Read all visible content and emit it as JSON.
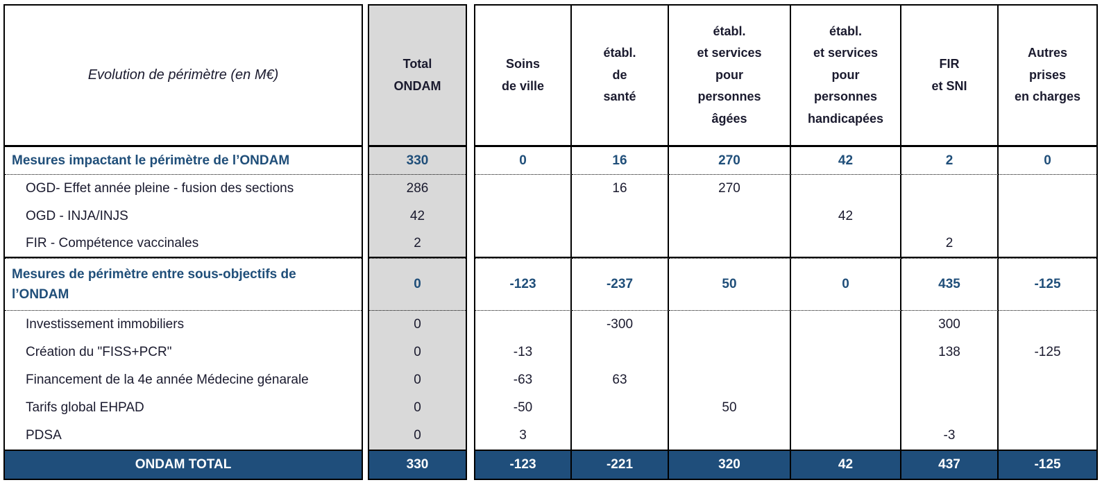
{
  "chart_data": {
    "type": "table",
    "title": "Evolution de périmètre (en M€)",
    "unit": "M€",
    "total_column_header": "Total\nONDAM",
    "columns": [
      "Soins\nde ville",
      "établ.\nde\nsanté",
      "établ.\net services\npour\npersonnes\nâgées",
      "établ.\net services\npour\npersonnes\nhandicapées",
      "FIR\net SNI",
      "Autres\nprises\nen charges"
    ],
    "rows": [
      {
        "label": "Mesures impactant le périmètre de l’ONDAM",
        "style": "section",
        "values": [
          "330",
          "0",
          "16",
          "270",
          "42",
          "2",
          "0"
        ]
      },
      {
        "label": "OGD- Effet année pleine - fusion des sections",
        "style": "sub",
        "values": [
          "286",
          "",
          "16",
          "270",
          "",
          "",
          ""
        ]
      },
      {
        "label": "OGD - INJA/INJS",
        "style": "sub",
        "values": [
          "42",
          "",
          "",
          "",
          "42",
          "",
          ""
        ]
      },
      {
        "label": "FIR - Compétence vaccinales",
        "style": "sub",
        "values": [
          "2",
          "",
          "",
          "",
          "",
          "2",
          ""
        ]
      },
      {
        "label": "Mesures de périmètre entre sous-objectifs de l’ONDAM",
        "style": "section",
        "values": [
          "0",
          "-123",
          "-237",
          "50",
          "0",
          "435",
          "-125"
        ]
      },
      {
        "label": "Investissement immobiliers",
        "style": "sub",
        "values": [
          "0",
          "",
          "-300",
          "",
          "",
          "300",
          ""
        ]
      },
      {
        "label": "Création du \"FISS+PCR\"",
        "style": "sub",
        "values": [
          "0",
          "-13",
          "",
          "",
          "",
          "138",
          "-125"
        ]
      },
      {
        "label": "Financement de la 4e année Médecine génarale",
        "style": "sub",
        "values": [
          "0",
          "-63",
          "63",
          "",
          "",
          "",
          ""
        ]
      },
      {
        "label": "Tarifs global EHPAD",
        "style": "sub",
        "values": [
          "0",
          "-50",
          "",
          "50",
          "",
          "",
          ""
        ]
      },
      {
        "label": "PDSA",
        "style": "sub",
        "values": [
          "0",
          "3",
          "",
          "",
          "",
          "-3",
          ""
        ]
      }
    ],
    "total_row": {
      "label": "ONDAM TOTAL",
      "values": [
        "330",
        "-123",
        "-221",
        "320",
        "42",
        "437",
        "-125"
      ]
    }
  },
  "colors": {
    "accent_blue": "#1f4e79",
    "total_row_bg": "#1f4e7b",
    "total_row_text": "#ffffff",
    "total_column_bg": "#d9d9d9",
    "border": "#000000",
    "ink": "#1a1a2e"
  }
}
